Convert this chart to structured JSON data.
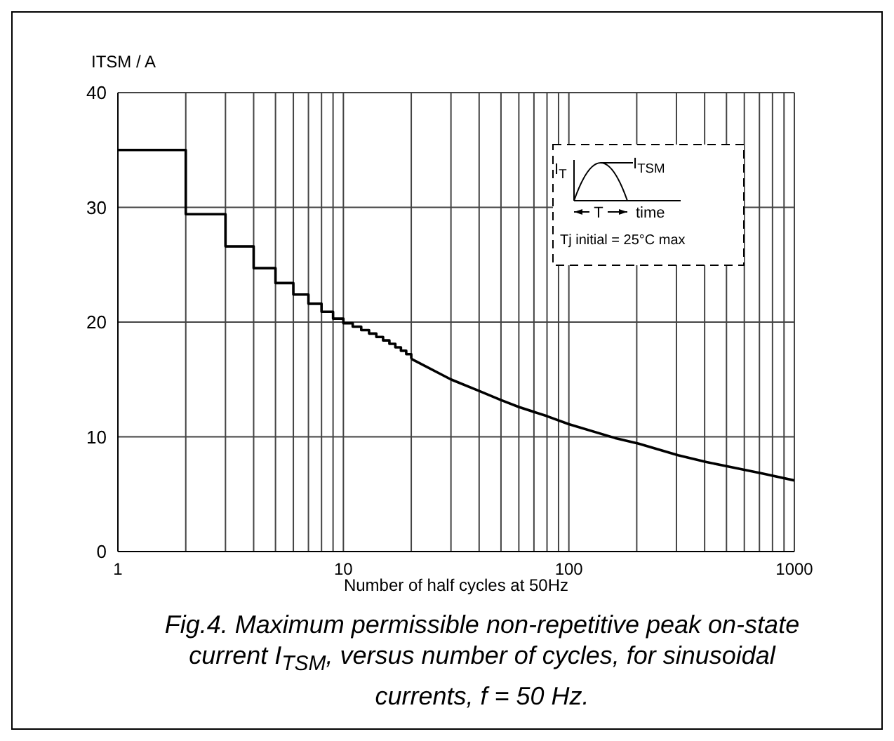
{
  "chart_data": {
    "type": "line",
    "title": "Fig.4.   Maximum permissible non-repetitive peak on-state current I$_{TSM}$, versus number of cycles, for sinusoidal currents, f = 50 Hz.",
    "xlabel": "Number of half cycles at 50Hz",
    "ylabel": "ITSM / A",
    "annotations": [
      "I$_{T}$",
      "I$_{TSM}$",
      "T",
      "time",
      "Tj initial = 25°C max"
    ],
    "log": "x",
    "xlim": [
      1,
      1000
    ],
    "xticks": [
      1,
      {
        "value": 2,
        "label": null
      },
      {
        "value": 3,
        "label": null
      },
      {
        "value": 4,
        "label": null
      },
      {
        "value": 5,
        "label": null
      },
      {
        "value": 6,
        "label": null
      },
      {
        "value": 7,
        "label": null
      },
      {
        "value": 8,
        "label": null
      },
      {
        "value": 9,
        "label": null
      },
      10,
      {
        "value": 20,
        "label": null
      },
      {
        "value": 30,
        "label": null
      },
      {
        "value": 40,
        "label": null
      },
      {
        "value": 50,
        "label": null
      },
      {
        "value": 60,
        "label": null
      },
      {
        "value": 70,
        "label": null
      },
      {
        "value": 80,
        "label": null
      },
      {
        "value": 90,
        "label": null
      },
      100,
      {
        "value": 200,
        "label": null
      },
      {
        "value": 300,
        "label": null
      },
      {
        "value": 400,
        "label": null
      },
      {
        "value": 500,
        "label": null
      },
      {
        "value": 600,
        "label": null
      },
      {
        "value": 700,
        "label": null
      },
      {
        "value": 800,
        "label": null
      },
      {
        "value": 900,
        "label": null
      },
      1000
    ],
    "ylim": [
      0,
      40
    ],
    "yticks": [
      0,
      10,
      20,
      30,
      40
    ],
    "grid": true,
    "series": [
      {
        "type": "step",
        "color": "#000000",
        "x": [
          1,
          2,
          3,
          4,
          5,
          6,
          7,
          8,
          9,
          10,
          11,
          12,
          13,
          14,
          15,
          16,
          17,
          18,
          19,
          20
        ],
        "values": [
          35,
          29.4,
          26.6,
          24.7,
          23.4,
          22.4,
          21.6,
          20.9,
          20.3,
          19.9,
          19.6,
          19.3,
          19.0,
          18.7,
          18.4,
          18.1,
          17.8,
          17.5,
          17.2,
          16.8
        ]
      },
      {
        "type": "line",
        "color": "#000000",
        "x": [
          20,
          30,
          40,
          50,
          60,
          80,
          100,
          160,
          204,
          305,
          408,
          512,
          721,
          1000
        ],
        "values": [
          16.8,
          15.0,
          14.0,
          13.2,
          12.6,
          11.8,
          11.1,
          9.9,
          9.4,
          8.4,
          7.8,
          7.4,
          6.8,
          6.2
        ]
      }
    ]
  }
}
